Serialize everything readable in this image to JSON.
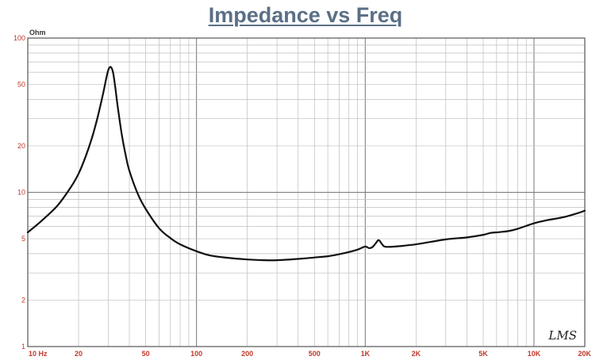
{
  "chart_data": {
    "type": "line",
    "title": "Impedance vs Freq",
    "y_unit": "Ohm",
    "x_scale": "log",
    "y_scale": "log",
    "xlim": [
      10,
      20000
    ],
    "ylim": [
      1,
      100
    ],
    "grid": true,
    "legend": "none",
    "x_ticks": [
      {
        "value": 10,
        "label": "10 Hz"
      },
      {
        "value": 20,
        "label": "20"
      },
      {
        "value": 50,
        "label": "50"
      },
      {
        "value": 100,
        "label": "100"
      },
      {
        "value": 200,
        "label": "200"
      },
      {
        "value": 500,
        "label": "500"
      },
      {
        "value": 1000,
        "label": "1K"
      },
      {
        "value": 2000,
        "label": "2K"
      },
      {
        "value": 5000,
        "label": "5K"
      },
      {
        "value": 10000,
        "label": "10K"
      },
      {
        "value": 20000,
        "label": "20K"
      }
    ],
    "y_ticks": [
      {
        "value": 100,
        "label": "100"
      },
      {
        "value": 50,
        "label": "50"
      },
      {
        "value": 20,
        "label": "20"
      },
      {
        "value": 10,
        "label": "10"
      },
      {
        "value": 5,
        "label": "5"
      },
      {
        "value": 2,
        "label": "2"
      },
      {
        "value": 1,
        "label": "1"
      }
    ],
    "series": [
      {
        "line_color": "#111111",
        "x": [
          10,
          12,
          15,
          18,
          20,
          22,
          24,
          26,
          28,
          29,
          30,
          31,
          32,
          33,
          34,
          36,
          38,
          40,
          45,
          50,
          60,
          70,
          80,
          100,
          120,
          150,
          200,
          250,
          300,
          400,
          500,
          600,
          700,
          800,
          900,
          1000,
          1050,
          1100,
          1150,
          1200,
          1250,
          1300,
          1400,
          1500,
          2000,
          3000,
          4000,
          5000,
          5500,
          6000,
          7000,
          8000,
          10000,
          12000,
          15000,
          18000,
          20000
        ],
        "y": [
          5.5,
          6.5,
          8.2,
          10.8,
          13.2,
          17,
          22.5,
          31,
          44,
          53,
          62,
          65,
          60,
          48,
          37,
          24,
          17.5,
          13.8,
          9.7,
          7.8,
          5.85,
          5.05,
          4.6,
          4.15,
          3.9,
          3.77,
          3.67,
          3.63,
          3.63,
          3.7,
          3.78,
          3.85,
          3.97,
          4.1,
          4.25,
          4.45,
          4.35,
          4.4,
          4.65,
          4.9,
          4.65,
          4.45,
          4.43,
          4.45,
          4.6,
          4.95,
          5.1,
          5.3,
          5.45,
          5.5,
          5.6,
          5.8,
          6.3,
          6.6,
          6.9,
          7.3,
          7.6
        ]
      }
    ]
  },
  "watermark": "LMS"
}
